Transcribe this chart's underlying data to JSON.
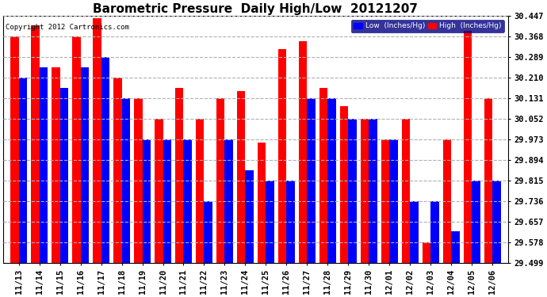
{
  "title": "Barometric Pressure  Daily High/Low  20121207",
  "copyright": "Copyright 2012 Cartronics.com",
  "ylabel_right_ticks": [
    29.499,
    29.578,
    29.657,
    29.736,
    29.815,
    29.894,
    29.973,
    30.052,
    30.131,
    30.21,
    30.289,
    30.368,
    30.447
  ],
  "ylim": [
    29.499,
    30.447
  ],
  "categories": [
    "11/13",
    "11/14",
    "11/15",
    "11/16",
    "11/17",
    "11/18",
    "11/19",
    "11/20",
    "11/21",
    "11/22",
    "11/23",
    "11/24",
    "11/25",
    "11/26",
    "11/27",
    "11/28",
    "11/29",
    "11/30",
    "12/01",
    "12/02",
    "12/03",
    "12/04",
    "12/05",
    "12/06"
  ],
  "high_values": [
    30.368,
    30.41,
    30.25,
    30.368,
    30.44,
    30.21,
    30.131,
    30.052,
    30.17,
    30.052,
    30.131,
    30.16,
    29.96,
    30.32,
    30.35,
    30.17,
    30.1,
    30.052,
    29.973,
    30.052,
    29.578,
    29.973,
    30.39,
    30.131
  ],
  "low_values": [
    30.21,
    30.25,
    30.17,
    30.25,
    30.289,
    30.131,
    29.973,
    29.973,
    29.973,
    29.736,
    29.973,
    29.855,
    29.815,
    29.815,
    30.131,
    30.131,
    30.052,
    30.052,
    29.973,
    29.736,
    29.736,
    29.62,
    29.815,
    29.815
  ],
  "high_color": "#ff0000",
  "low_color": "#0000ff",
  "bg_color": "#ffffff",
  "plot_bg_color": "#ffffff",
  "title_fontsize": 11,
  "tick_fontsize": 7.5,
  "bar_width": 0.4,
  "legend_low_label": "Low  (Inches/Hg)",
  "legend_high_label": "High  (Inches/Hg)"
}
